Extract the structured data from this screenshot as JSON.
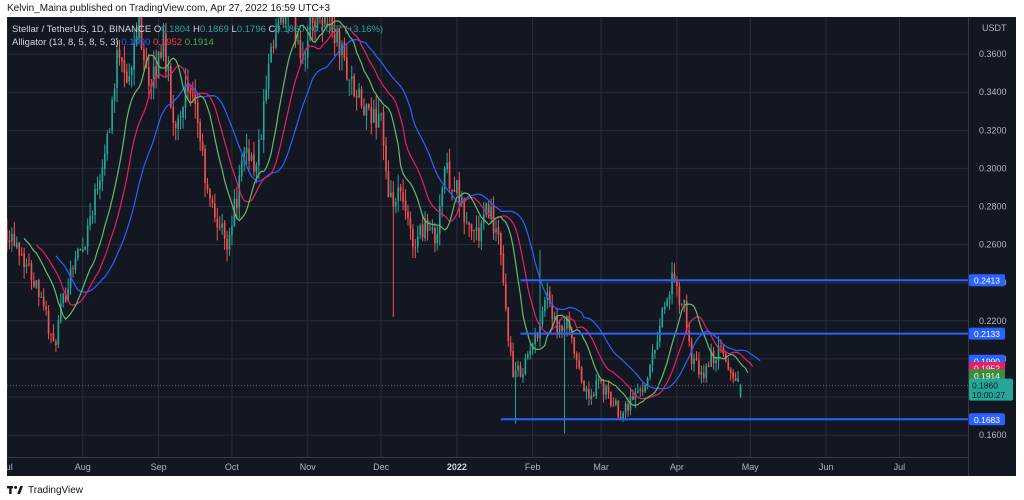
{
  "caption": "Kelvin_Maina published on TradingView.com, Apr 27, 2022 16:59 UTC+3",
  "footer_brand": "TradingView",
  "logo_icon": "tradingview-logo-icon",
  "legend": {
    "symbol": "Stellar / TetherUS, 1D, BINANCE",
    "ohlc": [
      {
        "label": "O",
        "value": "0.1804"
      },
      {
        "label": "H",
        "value": "0.1869"
      },
      {
        "label": "L",
        "value": "0.1796"
      },
      {
        "label": "C",
        "value": "0.1860"
      }
    ],
    "change": "+0.0057 (+3.16%)",
    "indicator": "Alligator (13, 8, 5, 8, 5, 3)",
    "indicator_values": [
      "0.1990",
      "0.1952",
      "0.1914"
    ]
  },
  "colors": {
    "background": "#131722",
    "grid": "#2a2e39",
    "text": "#b2b5be",
    "up": "#26a69a",
    "down": "#ef5350",
    "jaw": "#2962ff",
    "teeth": "#e91e63",
    "lips": "#66bb6a",
    "hline": "#2962ff"
  },
  "chart_data": {
    "type": "candlestick",
    "currency": "USDT",
    "y_ticks": [
      "0.3600",
      "0.3400",
      "0.3200",
      "0.3000",
      "0.2800",
      "0.2600",
      "0.2400",
      "0.2200",
      "0.2000",
      "0.1800",
      "0.1600"
    ],
    "ylim": [
      0.1485,
      0.3795
    ],
    "x_labels": [
      "Jul",
      "Aug",
      "Sep",
      "Oct",
      "Nov",
      "Dec",
      "2022",
      "Feb",
      "Mar",
      "Apr",
      "May",
      "Jun",
      "Jul"
    ],
    "start_date": "2021-07-01",
    "end_date": "2022-07-27",
    "horizontal_lines": [
      {
        "value": 0.2413,
        "label": "0.2413",
        "from": "2022-01-27"
      },
      {
        "value": 0.2133,
        "label": "0.2133",
        "from": "2022-01-27"
      },
      {
        "value": 0.1683,
        "label": "0.1683",
        "from": "2022-01-19"
      }
    ],
    "price_labels": [
      {
        "value": 0.199,
        "label": "0.1990",
        "color": "#2962ff"
      },
      {
        "value": 0.1952,
        "label": "0.1952",
        "color": "#e91e63"
      },
      {
        "value": 0.1914,
        "label": "0.1914",
        "color": "#388e3c"
      }
    ],
    "last_price": {
      "value": 0.186,
      "label": "0.1860",
      "countdown": "10:00:27",
      "color": "#26a69a"
    },
    "price_path": [
      [
        "2021-07-01",
        0.268
      ],
      [
        "2021-07-05",
        0.262
      ],
      [
        "2021-07-10",
        0.247
      ],
      [
        "2021-07-15",
        0.235
      ],
      [
        "2021-07-20",
        0.205
      ],
      [
        "2021-07-23",
        0.224
      ],
      [
        "2021-07-28",
        0.252
      ],
      [
        "2021-08-01",
        0.258
      ],
      [
        "2021-08-07",
        0.292
      ],
      [
        "2021-08-12",
        0.325
      ],
      [
        "2021-08-16",
        0.365
      ],
      [
        "2021-08-20",
        0.345
      ],
      [
        "2021-08-24",
        0.378
      ],
      [
        "2021-08-29",
        0.34
      ],
      [
        "2021-09-03",
        0.37
      ],
      [
        "2021-09-07",
        0.322
      ],
      [
        "2021-09-12",
        0.34
      ],
      [
        "2021-09-17",
        0.325
      ],
      [
        "2021-09-21",
        0.285
      ],
      [
        "2021-09-25",
        0.272
      ],
      [
        "2021-09-29",
        0.262
      ],
      [
        "2021-10-03",
        0.285
      ],
      [
        "2021-10-07",
        0.312
      ],
      [
        "2021-10-11",
        0.3
      ],
      [
        "2021-10-16",
        0.35
      ],
      [
        "2021-10-20",
        0.375
      ],
      [
        "2021-10-25",
        0.382
      ],
      [
        "2021-10-30",
        0.36
      ],
      [
        "2021-11-05",
        0.385
      ],
      [
        "2021-11-10",
        0.378
      ],
      [
        "2021-11-15",
        0.36
      ],
      [
        "2021-11-20",
        0.34
      ],
      [
        "2021-11-26",
        0.325
      ],
      [
        "2021-12-01",
        0.33
      ],
      [
        "2021-12-04",
        0.28
      ],
      [
        "2021-12-09",
        0.285
      ],
      [
        "2021-12-14",
        0.26
      ],
      [
        "2021-12-19",
        0.272
      ],
      [
        "2021-12-23",
        0.262
      ],
      [
        "2021-12-27",
        0.3
      ],
      [
        "2022-01-01",
        0.288
      ],
      [
        "2022-01-05",
        0.27
      ],
      [
        "2022-01-10",
        0.265
      ],
      [
        "2022-01-14",
        0.28
      ],
      [
        "2022-01-18",
        0.262
      ],
      [
        "2022-01-21",
        0.225
      ],
      [
        "2022-01-24",
        0.19
      ],
      [
        "2022-01-28",
        0.196
      ],
      [
        "2022-02-02",
        0.21
      ],
      [
        "2022-02-07",
        0.236
      ],
      [
        "2022-02-11",
        0.212
      ],
      [
        "2022-02-15",
        0.218
      ],
      [
        "2022-02-20",
        0.192
      ],
      [
        "2022-02-24",
        0.178
      ],
      [
        "2022-02-28",
        0.188
      ],
      [
        "2022-03-05",
        0.178
      ],
      [
        "2022-03-09",
        0.172
      ],
      [
        "2022-03-14",
        0.18
      ],
      [
        "2022-03-18",
        0.185
      ],
      [
        "2022-03-22",
        0.2
      ],
      [
        "2022-03-26",
        0.225
      ],
      [
        "2022-03-30",
        0.24
      ],
      [
        "2022-04-04",
        0.226
      ],
      [
        "2022-04-07",
        0.2
      ],
      [
        "2022-04-11",
        0.19
      ],
      [
        "2022-04-15",
        0.2
      ],
      [
        "2022-04-19",
        0.204
      ],
      [
        "2022-04-23",
        0.193
      ],
      [
        "2022-04-27",
        0.186
      ]
    ]
  }
}
